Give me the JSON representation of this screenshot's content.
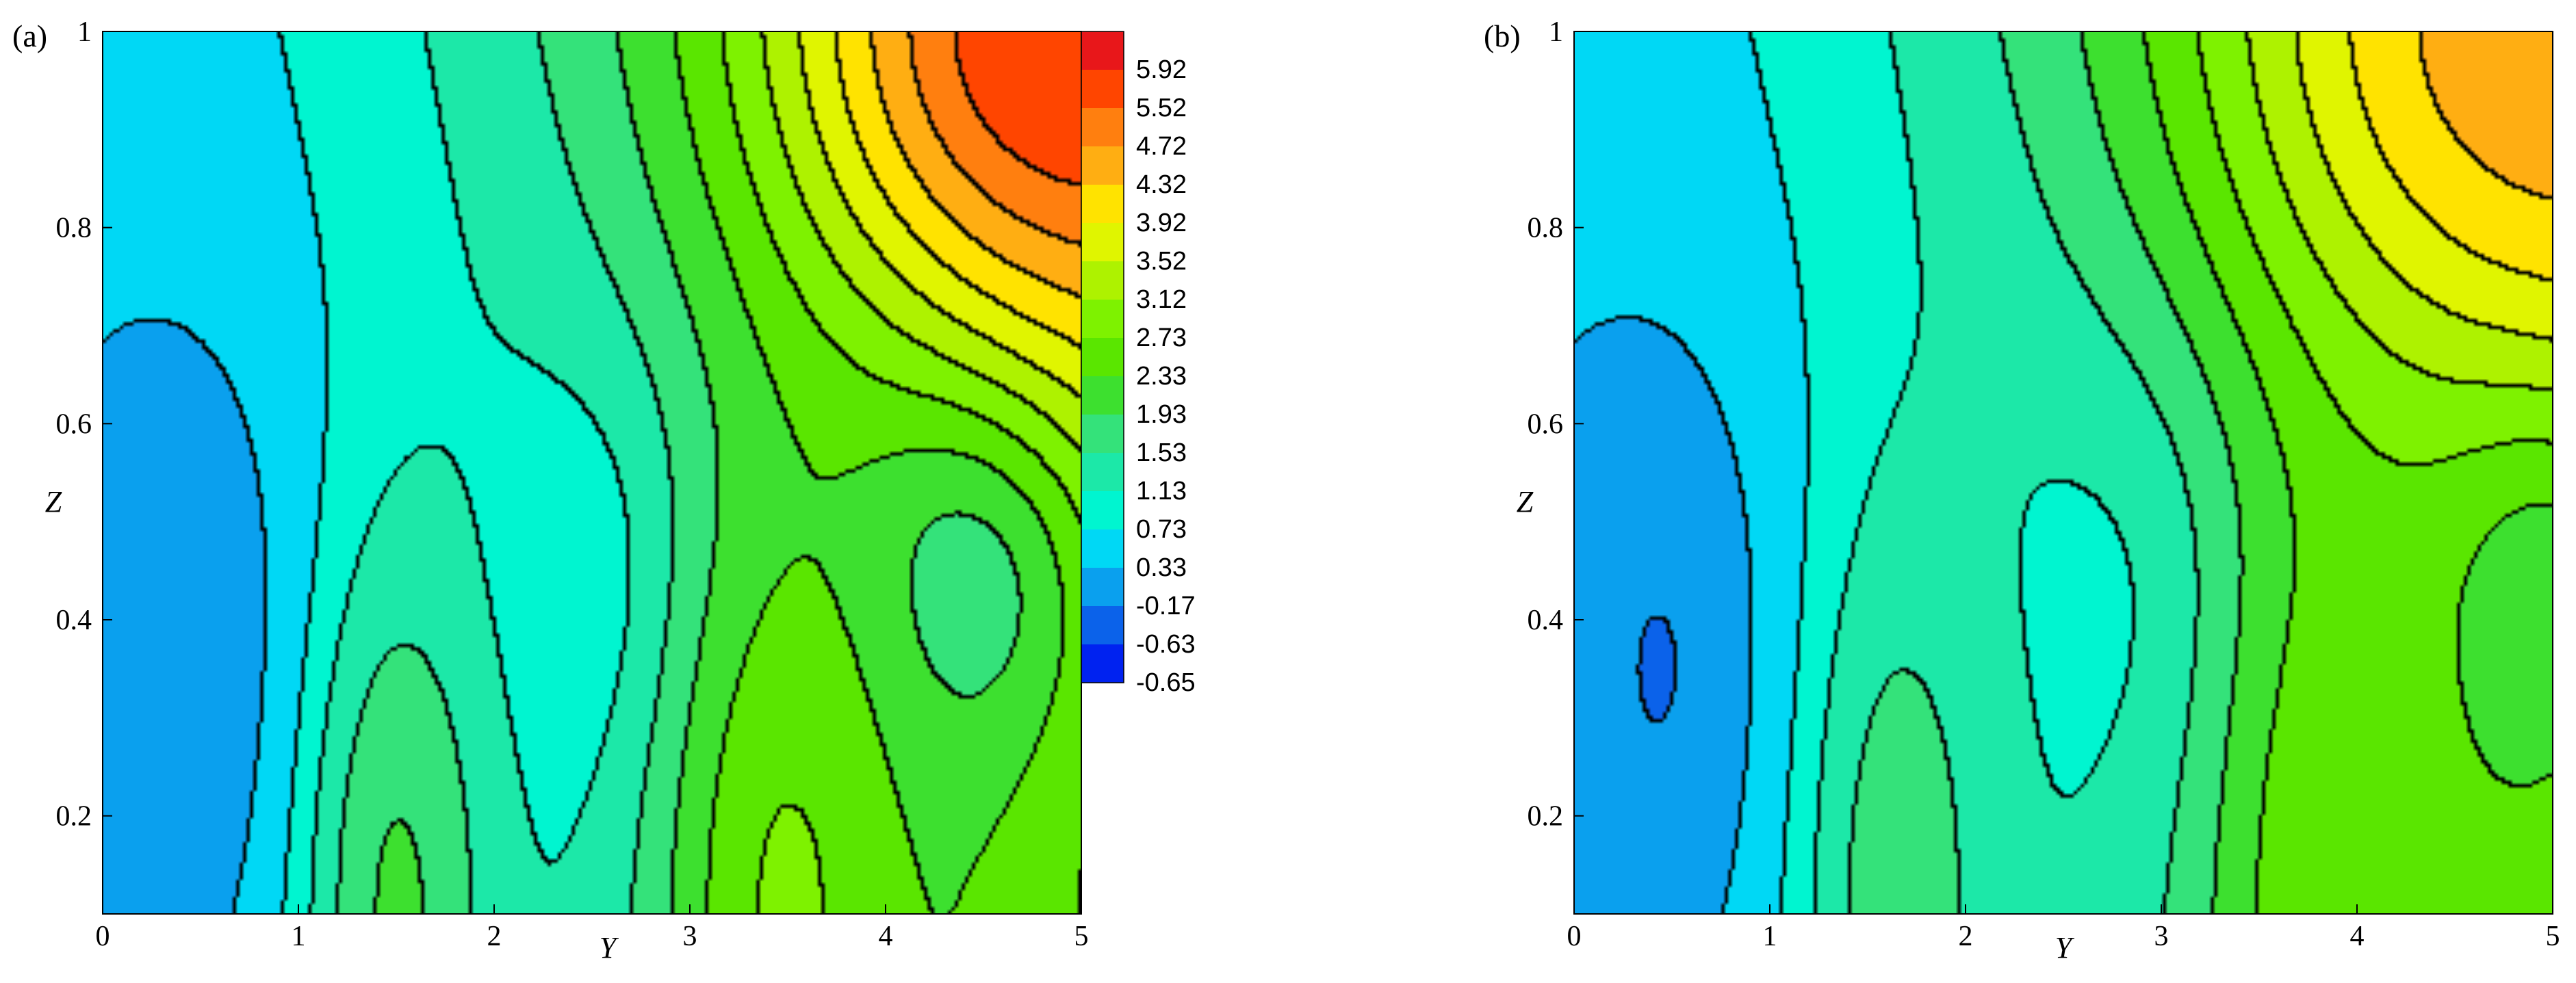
{
  "chart_data": [
    {
      "type": "heatmap",
      "panel_label": "(a)",
      "xlabel": "Y",
      "ylabel": "Z",
      "xlim": [
        0,
        5
      ],
      "ylim": [
        0.1,
        1
      ],
      "x_ticks": [
        "0",
        "1",
        "2",
        "3",
        "4",
        "5"
      ],
      "y_ticks": [
        "0.2",
        "0.4",
        "0.6",
        "0.8",
        "1"
      ],
      "features": [
        {
          "kind": "min",
          "y": 0.4,
          "z": 0.35,
          "value": -0.63,
          "sy": 0.45,
          "sz": 0.25
        },
        {
          "kind": "min",
          "y": 2.4,
          "z": 0.42,
          "value": 0.4,
          "sy": 0.4,
          "sz": 0.17
        },
        {
          "kind": "min",
          "y": 4.35,
          "z": 0.45,
          "value": 1.1,
          "sy": 0.45,
          "sz": 0.14
        },
        {
          "kind": "max",
          "y": 1.5,
          "z": 0.1,
          "value": 1.6,
          "sy": 0.35,
          "sz": 0.28
        },
        {
          "kind": "max",
          "y": 3.5,
          "z": 0.1,
          "value": 2.4,
          "sy": 0.45,
          "sz": 0.3
        },
        {
          "kind": "corner",
          "y": 5.0,
          "z": 1.0,
          "value": 5.2,
          "sy": 1.0,
          "sz": 0.22
        }
      ]
    },
    {
      "type": "heatmap",
      "panel_label": "(b)",
      "xlabel": "Y",
      "ylabel": "Z",
      "xlim": [
        0,
        5
      ],
      "ylim": [
        0.1,
        1
      ],
      "x_ticks": [
        "0",
        "1",
        "2",
        "3",
        "4",
        "5"
      ],
      "y_ticks": [
        "0.2",
        "0.4",
        "0.6",
        "0.8",
        "1"
      ],
      "features": [
        {
          "kind": "min",
          "y": 0.42,
          "z": 0.35,
          "value": -0.65,
          "sy": 0.45,
          "sz": 0.25
        },
        {
          "kind": "min",
          "y": 2.65,
          "z": 0.42,
          "value": 0.6,
          "sy": 0.55,
          "sz": 0.2
        },
        {
          "kind": "min",
          "y": 4.95,
          "z": 0.45,
          "value": 1.4,
          "sy": 0.5,
          "sz": 0.18
        },
        {
          "kind": "max",
          "y": 1.65,
          "z": 0.1,
          "value": 1.4,
          "sy": 0.35,
          "sz": 0.3
        },
        {
          "kind": "max",
          "y": 3.9,
          "z": 0.1,
          "value": 2.3,
          "sy": 0.45,
          "sz": 0.32
        },
        {
          "kind": "corner",
          "y": 5.0,
          "z": 1.0,
          "value": 4.2,
          "sy": 1.1,
          "sz": 0.25
        }
      ]
    }
  ],
  "legend": {
    "levels": [
      "5.92",
      "5.52",
      "4.72",
      "4.32",
      "3.92",
      "3.52",
      "3.12",
      "2.73",
      "2.33",
      "1.93",
      "1.53",
      "1.13",
      "0.73",
      "0.33",
      "-0.17",
      "-0.63",
      "-0.65"
    ],
    "colors": [
      "#e8171a",
      "#ff4500",
      "#ff7f0f",
      "#ffae12",
      "#ffe300",
      "#e0f500",
      "#aef200",
      "#7ef200",
      "#5ae600",
      "#3de02f",
      "#34e27a",
      "#1ce8a8",
      "#00f5d0",
      "#00d8f5",
      "#0aa0ee",
      "#0b62ea",
      "#0022f0"
    ]
  }
}
